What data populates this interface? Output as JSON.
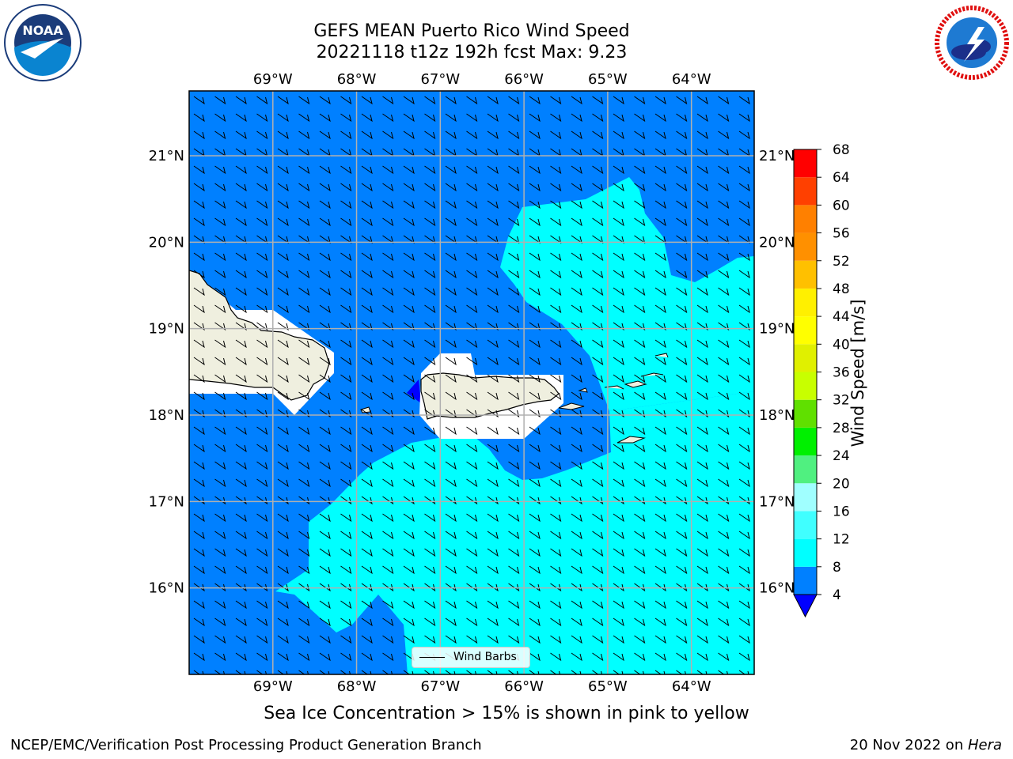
{
  "header": {
    "title_line1": "GEFS MEAN Puerto Rico Wind Speed",
    "title_line2": "20221118 t12z 192h fcst   Max: 9.23"
  },
  "logos": {
    "noaa": {
      "text": "NOAA",
      "ring_text": "NATIONAL OCEANIC AND ATMOSPHERIC ADMINISTRATION · U.S. DEPARTMENT OF COMMERCE"
    },
    "nws": {
      "ring_text": "NATIONAL WEATHER SERVICE"
    }
  },
  "map": {
    "lon_labels": [
      "69°W",
      "68°W",
      "67°W",
      "66°W",
      "65°W",
      "64°W"
    ],
    "lat_labels": [
      "21°N",
      "20°N",
      "19°N",
      "18°N",
      "17°N",
      "16°N"
    ],
    "lon_values": [
      -69,
      -68,
      -67,
      -66,
      -65,
      -64
    ],
    "lat_values": [
      21,
      20,
      19,
      18,
      17,
      16
    ],
    "lon_range": [
      -70,
      -63.25
    ],
    "lat_range": [
      15.0,
      21.75
    ],
    "colors": {
      "speed_4_8": "#0080ff",
      "speed_8_12": "#00ffff",
      "speed_below_4": "#0000ff",
      "land": "#efefdf",
      "gridline": "#b0b0b0"
    }
  },
  "legend": {
    "label": "Wind Barbs"
  },
  "colorbar": {
    "label": "Wind Speed [m/s]",
    "ticks": [
      "68",
      "64",
      "60",
      "56",
      "52",
      "48",
      "44",
      "40",
      "36",
      "32",
      "28",
      "24",
      "20",
      "16",
      "12",
      "8",
      "4"
    ],
    "bins": [
      {
        "from": 4,
        "to": 8,
        "color": "#0080ff"
      },
      {
        "from": 8,
        "to": 12,
        "color": "#00ffff"
      },
      {
        "from": 12,
        "to": 16,
        "color": "#40ffff"
      },
      {
        "from": 16,
        "to": 20,
        "color": "#a0ffff"
      },
      {
        "from": 20,
        "to": 24,
        "color": "#50f080"
      },
      {
        "from": 24,
        "to": 28,
        "color": "#00f000"
      },
      {
        "from": 28,
        "to": 32,
        "color": "#60e000"
      },
      {
        "from": 32,
        "to": 36,
        "color": "#c8ff00"
      },
      {
        "from": 36,
        "to": 40,
        "color": "#e0f000"
      },
      {
        "from": 40,
        "to": 44,
        "color": "#ffff00"
      },
      {
        "from": 44,
        "to": 48,
        "color": "#fff000"
      },
      {
        "from": 48,
        "to": 52,
        "color": "#ffc000"
      },
      {
        "from": 52,
        "to": 56,
        "color": "#ff9000"
      },
      {
        "from": 56,
        "to": 60,
        "color": "#ff8000"
      },
      {
        "from": 60,
        "to": 64,
        "color": "#ff4000"
      },
      {
        "from": 64,
        "to": 68,
        "color": "#ff0000"
      }
    ],
    "under_color": "#0000ff"
  },
  "subtitle": "Sea Ice Concentration > 15% is shown in pink to yellow",
  "footer": {
    "left": "NCEP/EMC/Verification Post Processing Product Generation Branch",
    "right_date": "20 Nov 2022 on ",
    "right_machine": "Hera"
  }
}
